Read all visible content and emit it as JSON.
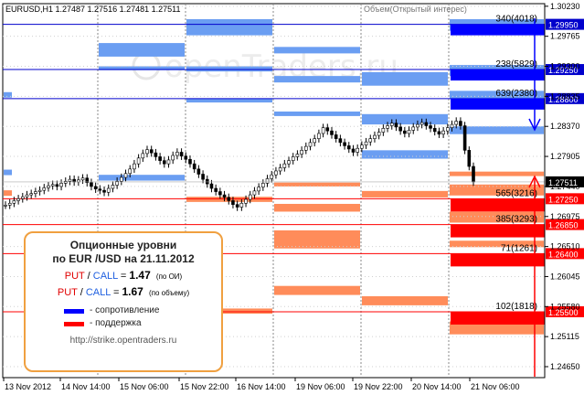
{
  "chart_data": {
    "type": "candlestick",
    "symbol_header": "EURUSD,H1  1.27487 1.27516 1.27481 1.27511",
    "indicator_title": "Объем(Открытый интерес)",
    "ylim": [
      1.2448,
      1.3027
    ],
    "y_ticks": [
      "1.30230",
      "1.29765",
      "1.29300",
      "1.28835",
      "1.28370",
      "1.27905",
      "1.27440",
      "1.26975",
      "1.26510",
      "1.26045",
      "1.25580",
      "1.25115",
      "1.24650"
    ],
    "x_ticks": [
      "13 Nov 2012",
      "14 Nov 14:00",
      "15 Nov 06:00",
      "15 Nov 22:00",
      "16 Nov 14:00",
      "19 Nov 06:00",
      "19 Nov 22:00",
      "20 Nov 14:00",
      "21 Nov 06:00"
    ],
    "current_price": "1.27511",
    "level_labels": [
      {
        "price": 1.2995,
        "label": "1.29950",
        "color": "#0000cc"
      },
      {
        "price": 1.2925,
        "label": "1.29250",
        "color": "#0000cc"
      },
      {
        "price": 1.288,
        "label": "1.28800",
        "color": "#0000cc"
      },
      {
        "price": 1.2725,
        "label": "1.27250",
        "color": "#ff0000"
      },
      {
        "price": 1.2685,
        "label": "1.26850",
        "color": "#ff0000"
      },
      {
        "price": 1.264,
        "label": "1.26400",
        "color": "#ff0000"
      },
      {
        "price": 1.255,
        "label": "1.25500",
        "color": "#ff0000"
      }
    ],
    "open_interest": [
      {
        "price": 1.2995,
        "label": "340(4018)",
        "side": "call"
      },
      {
        "price": 1.2925,
        "label": "238(5829)",
        "side": "call"
      },
      {
        "price": 1.288,
        "label": "639(2380)",
        "side": "call"
      },
      {
        "price": 1.2725,
        "label": "565(3216)",
        "side": "put"
      },
      {
        "price": 1.2685,
        "label": "385(3293)",
        "side": "put"
      },
      {
        "price": 1.264,
        "label": "71(1261)",
        "side": "put"
      },
      {
        "price": 1.255,
        "label": "102(1818)",
        "side": "put"
      }
    ],
    "close_series": [
      1.2715,
      1.2718,
      1.2722,
      1.2725,
      1.2728,
      1.2731,
      1.2733,
      1.2736,
      1.2738,
      1.2742,
      1.2745,
      1.2747,
      1.2744,
      1.2749,
      1.2752,
      1.2755,
      1.2751,
      1.2754,
      1.2757,
      1.275,
      1.2744,
      1.274,
      1.2738,
      1.2735,
      1.2741,
      1.2746,
      1.2752,
      1.2758,
      1.2764,
      1.2771,
      1.2779,
      1.2788,
      1.2795,
      1.2801,
      1.2796,
      1.279,
      1.2784,
      1.2779,
      1.2785,
      1.2792,
      1.2797,
      1.2791,
      1.2786,
      1.2779,
      1.2771,
      1.2763,
      1.2755,
      1.2748,
      1.2741,
      1.2736,
      1.2731,
      1.2727,
      1.2722,
      1.2716,
      1.2712,
      1.2718,
      1.2724,
      1.2731,
      1.2737,
      1.2743,
      1.2749,
      1.2756,
      1.2762,
      1.2768,
      1.2773,
      1.2779,
      1.2784,
      1.279,
      1.2794,
      1.28,
      1.2806,
      1.2812,
      1.2818,
      1.2826,
      1.2835,
      1.283,
      1.2824,
      1.2818,
      1.2812,
      1.2807,
      1.2802,
      1.2797,
      1.2803,
      1.2808,
      1.2813,
      1.2818,
      1.2823,
      1.2828,
      1.2834,
      1.2838,
      1.2842,
      1.2836,
      1.283,
      1.2826,
      1.2831,
      1.2836,
      1.284,
      1.2843,
      1.2838,
      1.2834,
      1.2829,
      1.2825,
      1.283,
      1.2835,
      1.284,
      1.2845,
      1.2838,
      1.28,
      1.2775,
      1.2751
    ]
  },
  "panel": {
    "title1": "Опционные уровни",
    "title2": "по EUR /USD на 21.11.2012",
    "put": "PUT",
    "slash": " / ",
    "call": "CALL",
    "eq": " = ",
    "ratio_oi": "1.47",
    "ratio_oi_note": "(по ОИ)",
    "ratio_vol": "1.67",
    "ratio_vol_note": "(по объему)",
    "legend_resistance": "- сопротивление",
    "legend_support": "- поддержка",
    "url": "http://strike.opentraders.ru"
  },
  "watermark": "openTraders.ru",
  "colors": {
    "resistance": "#0000ff",
    "support": "#ff0000",
    "zone_blue": "#6b9ef2",
    "zone_orange": "#ff8c5a",
    "grid": "#d0d0d0"
  }
}
